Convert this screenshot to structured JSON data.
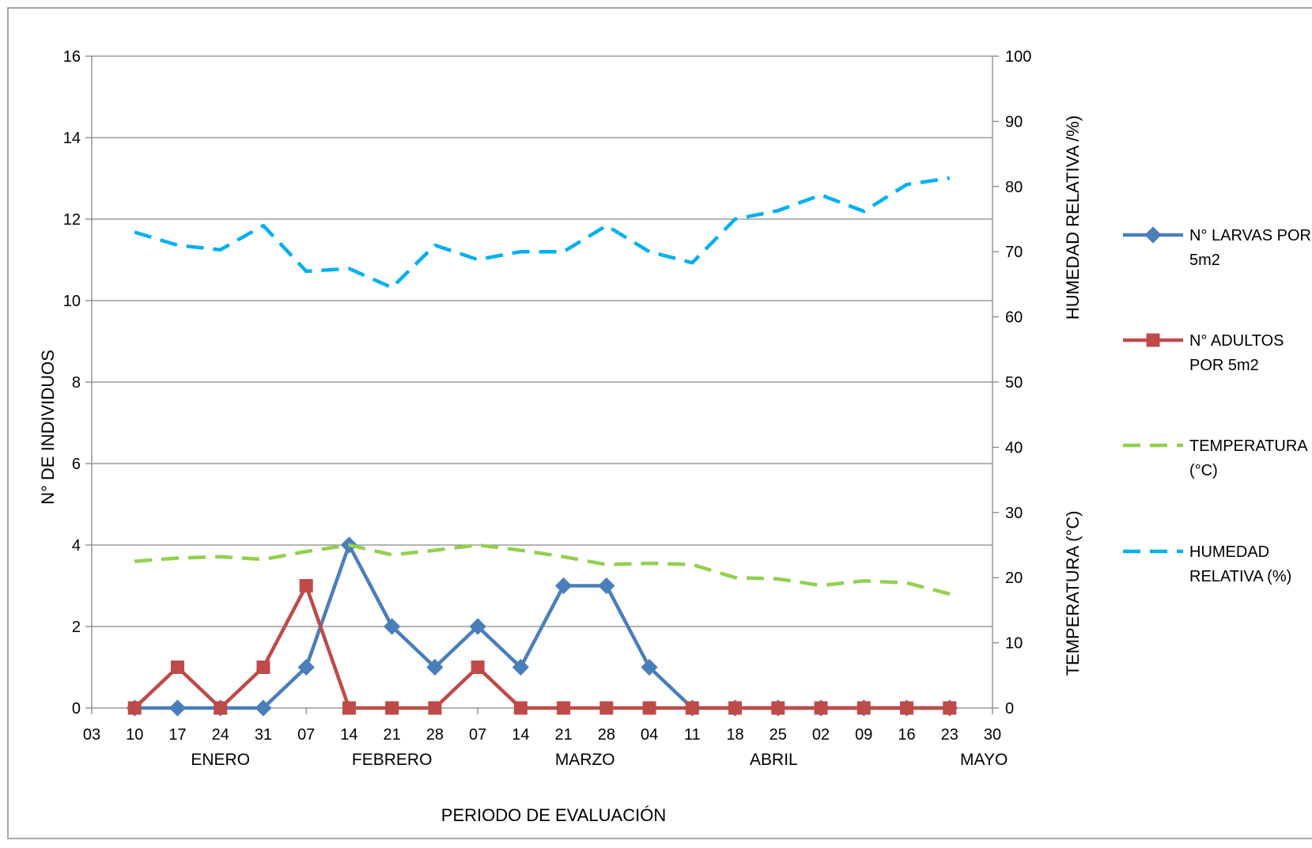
{
  "chart_data": {
    "type": "line",
    "xlabel": "PERIODO DE EVALUACIÓN",
    "ylabel_left": "N° DE INDIVIDUOS",
    "ylabel_right_top": "HUMEDAD RELATIVA /%)",
    "ylabel_right_bottom": "TEMPERATURA (°C)",
    "x_ticks": [
      "03",
      "10",
      "17",
      "24",
      "31",
      "07",
      "14",
      "21",
      "28",
      "07",
      "14",
      "21",
      "28",
      "04",
      "11",
      "18",
      "25",
      "02",
      "09",
      "16",
      "23",
      "30"
    ],
    "months": [
      {
        "label": "ENERO",
        "center_index": 3
      },
      {
        "label": "FEBRERO",
        "center_index": 7
      },
      {
        "label": "MARZO",
        "center_index": 11.5
      },
      {
        "label": "ABRIL",
        "center_index": 15.9
      },
      {
        "label": "MAYO",
        "center_index": 20.8
      }
    ],
    "y_left": {
      "min": 0,
      "max": 16,
      "ticks": [
        0,
        2,
        4,
        6,
        8,
        10,
        12,
        14,
        16
      ]
    },
    "y_right": {
      "min": 0,
      "max": 100,
      "ticks": [
        0,
        10,
        20,
        30,
        40,
        50,
        60,
        70,
        80,
        90,
        100
      ]
    },
    "grid": true,
    "legend_position": "right",
    "series": [
      {
        "name": "N° LARVAS POR 5m2",
        "legend_lines": [
          "N° LARVAS POR",
          "5m2"
        ],
        "axis": "left",
        "color": "#4a7ebb",
        "style": "solid",
        "marker": "diamond",
        "values": [
          0,
          0,
          0,
          0,
          1,
          4,
          2,
          1,
          2,
          1,
          3,
          3,
          1,
          0,
          0,
          0,
          0,
          0,
          0,
          0
        ]
      },
      {
        "name": "N° ADULTOS POR 5m2",
        "legend_lines": [
          "N° ADULTOS",
          "POR 5m2"
        ],
        "axis": "left",
        "color": "#be4b48",
        "style": "solid",
        "marker": "square",
        "values": [
          0,
          1,
          0,
          1,
          3,
          0,
          0,
          0,
          1,
          0,
          0,
          0,
          0,
          0,
          0,
          0,
          0,
          0,
          0,
          0
        ]
      },
      {
        "name": "TEMPERATURA (°C)",
        "legend_lines": [
          "TEMPERATURA",
          "(°C)"
        ],
        "axis": "right",
        "color": "#92d050",
        "style": "dashed",
        "marker": "none",
        "values": [
          22.5,
          23,
          23.2,
          22.8,
          24,
          25,
          23.5,
          24.2,
          25,
          24.2,
          23.2,
          22,
          22.2,
          22,
          20,
          19.8,
          18.8,
          19.5,
          19.2,
          17.5
        ]
      },
      {
        "name": "HUMEDAD RELATIVA (%)",
        "legend_lines": [
          "HUMEDAD",
          "RELATIVA (%)"
        ],
        "axis": "right",
        "color": "#00b0f0",
        "style": "dashed",
        "marker": "none",
        "values": [
          73,
          71,
          70.3,
          74,
          67,
          67.4,
          64.5,
          71,
          68.8,
          70,
          70,
          74,
          70,
          68.3,
          75,
          76.3,
          78.7,
          76.2,
          80.3,
          81.3
        ]
      }
    ]
  }
}
